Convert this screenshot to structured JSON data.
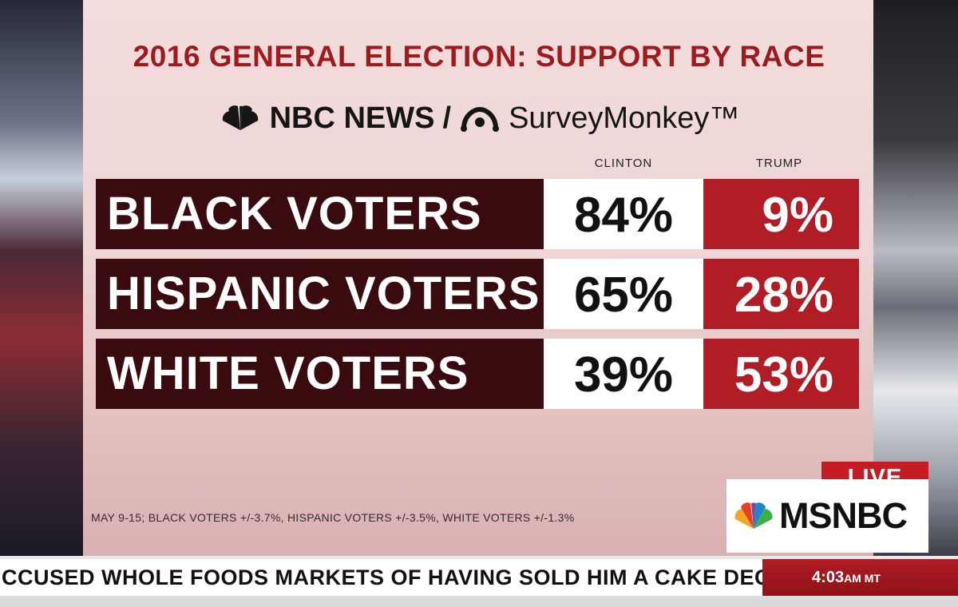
{
  "title": "2016 GENERAL ELECTION: SUPPORT BY RACE",
  "logos": {
    "nbc": "NBC NEWS",
    "separator": "/",
    "surveymonkey": "SurveyMonkey™"
  },
  "columns": {
    "clinton": "CLINTON",
    "trump": "TRUMP"
  },
  "footnote": "MAY 9-15; BLACK VOTERS +/-3.7%, HISPANIC VOTERS +/-3.5%, WHITE VOTERS +/-1.3%",
  "chart_data": {
    "type": "table",
    "title": "2016 GENERAL ELECTION: SUPPORT BY RACE",
    "columns": [
      "CLINTON",
      "TRUMP"
    ],
    "rows": [
      {
        "label": "BLACK VOTERS",
        "clinton": "84%",
        "trump": "9%"
      },
      {
        "label": "HISPANIC VOTERS",
        "clinton": "65%",
        "trump": "28%"
      },
      {
        "label": "WHITE VOTERS",
        "clinton": "39%",
        "trump": "53%"
      }
    ],
    "values": {
      "clinton": [
        84,
        65,
        39
      ],
      "trump": [
        9,
        28,
        53
      ]
    },
    "colors": {
      "label_bg": "#3a0b0e",
      "clinton_bg": "#ffffff",
      "trump_bg": "#b01d24",
      "title": "#9b1b1f"
    }
  },
  "bug": {
    "live": "LIVE",
    "network": "MSNBC"
  },
  "ticker": {
    "text": "CCUSED WHOLE FOODS MARKETS OF HAVING SOLD HIM A CAKE DECORATE",
    "time": "4:03",
    "time_suffix": "AM MT"
  }
}
